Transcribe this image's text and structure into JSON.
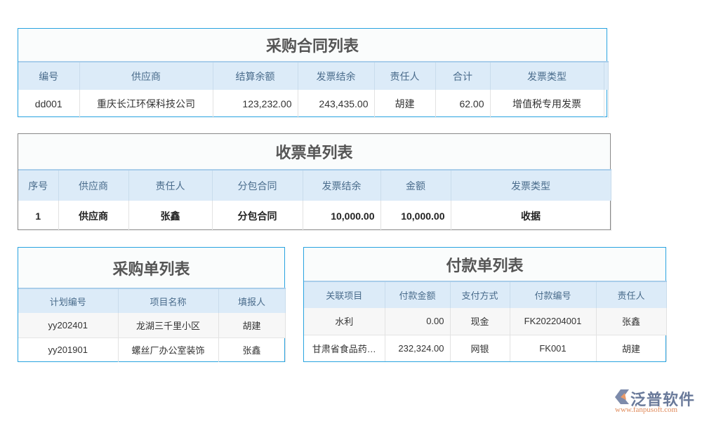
{
  "tables": [
    {
      "title": "采购合同列表",
      "headers": [
        "编号",
        "供应商",
        "结算余额",
        "发票结余",
        "责任人",
        "合计",
        "发票类型",
        ""
      ],
      "rows": [
        [
          "dd001",
          "重庆长江环保科技公司",
          "123,232.00",
          "243,435.00",
          "胡建",
          "62.00",
          "增值税专用发票",
          ""
        ]
      ]
    },
    {
      "title": "收票单列表",
      "headers": [
        "序号",
        "供应商",
        "责任人",
        "分包合同",
        "发票结余",
        "金额",
        "发票类型"
      ],
      "rows": [
        [
          "1",
          "供应商",
          "张鑫",
          "分包合同",
          "10,000.00",
          "10,000.00",
          "收据"
        ]
      ]
    },
    {
      "title": "采购单列表",
      "headers": [
        "计划编号",
        "项目名称",
        "填报人"
      ],
      "rows": [
        [
          "yy202401",
          "龙湖三千里小区",
          "胡建"
        ],
        [
          "yy201901",
          "螺丝厂办公室装饰",
          "张鑫"
        ]
      ]
    },
    {
      "title": "付款单列表",
      "headers": [
        "关联项目",
        "付款金额",
        "支付方式",
        "付款编号",
        "责任人"
      ],
      "rows": [
        [
          "水利",
          "0.00",
          "现金",
          "FK202204001",
          "张鑫"
        ],
        [
          "甘肃省食品药…",
          "232,324.00",
          "网银",
          "FK001",
          "胡建"
        ]
      ]
    }
  ],
  "logo": {
    "brand": "泛普软件",
    "url": "www.fanpusoft.com",
    "colors": {
      "brand": "#6a7a9a",
      "url": "#e08a5a"
    }
  }
}
